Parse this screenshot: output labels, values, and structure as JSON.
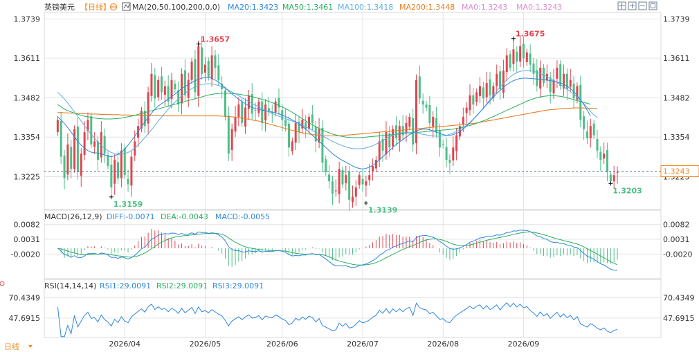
{
  "header": {
    "instrument": "英镑美元",
    "period_tag": "【日线】",
    "ma_label": "MA(20,50,100,200,0,0)",
    "ma_values": [
      {
        "text": "MA20:1.3423",
        "color": "#2e86de"
      },
      {
        "text": "MA50:1.3461",
        "color": "#27ae60"
      },
      {
        "text": "MA100:1.3418",
        "color": "#5dade2"
      },
      {
        "text": "MA200:1.3448",
        "color": "#e67e22"
      },
      {
        "text": "MA0:1.3243",
        "color": "#d98cd0"
      },
      {
        "text": "MA0:1.3243",
        "color": "#d98cd0"
      }
    ]
  },
  "controls": [
    {
      "name": "crosshair-icon"
    },
    {
      "name": "zoom-in-icon"
    },
    {
      "name": "zoom-out-icon"
    },
    {
      "name": "fullscreen-icon"
    }
  ],
  "macd": {
    "label": "MACD(26,12,9)",
    "values": [
      {
        "text": "DIFF:-0.0071",
        "color": "#2e86de"
      },
      {
        "text": "DEA:-0.0043",
        "color": "#27ae60"
      },
      {
        "text": "MACD:-0.0055",
        "color": "#2e86de"
      }
    ]
  },
  "rsi": {
    "label": "RSI(14,14,14)",
    "values": [
      {
        "text": "RSI1:29.0091",
        "color": "#2e86de"
      },
      {
        "text": "RSI2:29.0091",
        "color": "#27ae60"
      },
      {
        "text": "RSI3:29.0091",
        "color": "#2e86de"
      }
    ]
  },
  "period_button": "日线",
  "colors": {
    "up": "#e0454f",
    "down": "#4dbf87",
    "ma20": "#2e86de",
    "ma50": "#27ae60",
    "ma100": "#5dade2",
    "ma200": "#e67e22",
    "dea": "#27ae60",
    "diff": "#2e86de",
    "rsi": "#2e86de",
    "price_tag": "#f08a24",
    "grid": "#e3e3e3"
  },
  "chart_data": {
    "type": "candlestick",
    "price_axis": {
      "ticks": [
        "1.3739",
        "1.3611",
        "1.3482",
        "1.3354",
        "1.3225"
      ],
      "tick_values": [
        1.3739,
        1.3611,
        1.3482,
        1.3354,
        1.3225
      ],
      "range": [
        1.3118,
        1.376
      ],
      "last_price": "1.3243",
      "last_value": 1.3243
    },
    "annotations": [
      {
        "text": "1.3657",
        "index": 42,
        "value": 1.3657,
        "type": "high"
      },
      {
        "text": "1.3675",
        "index": 136,
        "value": 1.3675,
        "type": "high"
      },
      {
        "text": "1.3159",
        "index": 16,
        "value": 1.3159,
        "type": "low"
      },
      {
        "text": "1.3139",
        "index": 92,
        "value": 1.3139,
        "type": "low"
      },
      {
        "text": "1.3203",
        "index": 165,
        "value": 1.3203,
        "type": "low"
      }
    ],
    "x_ticks": [
      {
        "label": "2026/04",
        "index": 20
      },
      {
        "label": "2026/05",
        "index": 44
      },
      {
        "label": "2026/06",
        "index": 67
      },
      {
        "label": "2026/07",
        "index": 91
      },
      {
        "label": "2026/08",
        "index": 115
      },
      {
        "label": "2026/09",
        "index": 139
      }
    ],
    "closes": [
      1.341,
      1.329,
      1.322,
      1.333,
      1.325,
      1.338,
      1.324,
      1.33,
      1.337,
      1.341,
      1.333,
      1.334,
      1.328,
      1.337,
      1.33,
      1.326,
      1.319,
      1.328,
      1.322,
      1.331,
      1.323,
      1.32,
      1.329,
      1.334,
      1.339,
      1.344,
      1.339,
      1.35,
      1.356,
      1.348,
      1.354,
      1.35,
      1.352,
      1.347,
      1.354,
      1.351,
      1.346,
      1.356,
      1.349,
      1.354,
      1.36,
      1.35,
      1.365,
      1.356,
      1.359,
      1.355,
      1.362,
      1.358,
      1.354,
      1.351,
      1.342,
      1.33,
      1.338,
      1.342,
      1.346,
      1.34,
      1.345,
      1.349,
      1.343,
      1.344,
      1.347,
      1.34,
      1.346,
      1.344,
      1.343,
      1.347,
      1.345,
      1.341,
      1.339,
      1.332,
      1.334,
      1.34,
      1.337,
      1.341,
      1.338,
      1.342,
      1.34,
      1.334,
      1.338,
      1.327,
      1.324,
      1.321,
      1.317,
      1.318,
      1.325,
      1.32,
      1.323,
      1.315,
      1.316,
      1.319,
      1.323,
      1.32,
      1.321,
      1.323,
      1.326,
      1.328,
      1.334,
      1.331,
      1.337,
      1.332,
      1.338,
      1.335,
      1.339,
      1.336,
      1.34,
      1.342,
      1.333,
      1.354,
      1.348,
      1.346,
      1.345,
      1.34,
      1.342,
      1.337,
      1.332,
      1.333,
      1.328,
      1.327,
      1.332,
      1.336,
      1.339,
      1.342,
      1.345,
      1.349,
      1.346,
      1.35,
      1.352,
      1.348,
      1.353,
      1.349,
      1.352,
      1.356,
      1.351,
      1.357,
      1.362,
      1.358,
      1.364,
      1.36,
      1.365,
      1.361,
      1.363,
      1.359,
      1.356,
      1.352,
      1.358,
      1.353,
      1.356,
      1.35,
      1.354,
      1.358,
      1.352,
      1.356,
      1.351,
      1.354,
      1.348,
      1.352,
      1.341,
      1.338,
      1.335,
      1.339,
      1.336,
      1.331,
      1.328,
      1.33,
      1.324,
      1.321,
      1.323,
      1.324
    ],
    "ma20": [
      1.342,
      1.341,
      1.3398,
      1.3385,
      1.337,
      1.3355,
      1.334,
      1.3328,
      1.3318,
      1.331,
      1.3305,
      1.3303,
      1.3302,
      1.33,
      1.3296,
      1.3292,
      1.329,
      1.3293,
      1.3298,
      1.3305,
      1.3315,
      1.3328,
      1.3342,
      1.3357,
      1.3372,
      1.3388,
      1.3403,
      1.3418,
      1.3432,
      1.3445,
      1.3455,
      1.3463,
      1.347,
      1.3478,
      1.3486,
      1.3494,
      1.3503,
      1.3512,
      1.3519,
      1.3525,
      1.3532,
      1.3538,
      1.3542,
      1.3546,
      1.3548,
      1.3548,
      1.3546,
      1.354,
      1.3533,
      1.3524,
      1.3514,
      1.3504,
      1.3495,
      1.3486,
      1.3477,
      1.347,
      1.3463,
      1.3456,
      1.345,
      1.3447,
      1.3444,
      1.3442,
      1.344,
      1.3438,
      1.3436,
      1.3433,
      1.343,
      1.3426,
      1.3421,
      1.3416,
      1.341,
      1.3404,
      1.3397,
      1.3389,
      1.338,
      1.337,
      1.336,
      1.335,
      1.334,
      1.333,
      1.332,
      1.331,
      1.33,
      1.3292,
      1.3284,
      1.3278,
      1.3272,
      1.3266,
      1.326,
      1.3255,
      1.3252,
      1.325,
      1.3252,
      1.3256,
      1.3262,
      1.327,
      1.328,
      1.329,
      1.33,
      1.331,
      1.332,
      1.333,
      1.3338,
      1.3346,
      1.3354,
      1.3362,
      1.3368,
      1.3374,
      1.3378,
      1.338,
      1.338,
      1.3378,
      1.3374,
      1.337,
      1.3366,
      1.3362,
      1.336,
      1.336,
      1.3362,
      1.3366,
      1.3372,
      1.338,
      1.339,
      1.34,
      1.3412,
      1.3424,
      1.3436,
      1.3448,
      1.346,
      1.3472,
      1.3484,
      1.3496,
      1.3506,
      1.3516,
      1.3525,
      1.3532,
      1.3538,
      1.3542,
      1.3545,
      1.3546,
      1.3546,
      1.3545,
      1.3544,
      1.3543,
      1.3542,
      1.3541,
      1.354,
      1.3538,
      1.3536,
      1.3533,
      1.353,
      1.3526,
      1.352,
      1.3512,
      1.3502,
      1.349,
      1.3476,
      1.346,
      1.3442,
      1.3423
    ],
    "ma50": [
      1.346,
      1.3452,
      1.3445,
      1.344,
      1.3436,
      1.3432,
      1.3428,
      1.3425,
      1.3422,
      1.342,
      1.3418,
      1.3416,
      1.3415,
      1.3414,
      1.3413,
      1.3413,
      1.3413,
      1.3414,
      1.3415,
      1.3416,
      1.3418,
      1.342,
      1.3422,
      1.3425,
      1.3428,
      1.3431,
      1.3434,
      1.3437,
      1.344,
      1.3443,
      1.3446,
      1.3449,
      1.3452,
      1.3455,
      1.3458,
      1.3461,
      1.3464,
      1.3467,
      1.347,
      1.3473,
      1.3476,
      1.3479,
      1.3482,
      1.3485,
      1.3488,
      1.3491,
      1.3493,
      1.3495,
      1.3496,
      1.3497,
      1.3497,
      1.3497,
      1.3496,
      1.3495,
      1.3494,
      1.3492,
      1.349,
      1.3488,
      1.3486,
      1.3483,
      1.348,
      1.3477,
      1.3474,
      1.347,
      1.3466,
      1.3462,
      1.3457,
      1.3452,
      1.3447,
      1.3441,
      1.3435,
      1.3428,
      1.3421,
      1.3414,
      1.3407,
      1.34,
      1.3394,
      1.3388,
      1.3382,
      1.3377,
      1.3372,
      1.3368,
      1.3364,
      1.3361,
      1.3358,
      1.3356,
      1.3354,
      1.3353,
      1.3352,
      1.3352,
      1.3352,
      1.3353,
      1.3354,
      1.3355,
      1.3356,
      1.3357,
      1.3358,
      1.3359,
      1.336,
      1.3361,
      1.3362,
      1.3363,
      1.3364,
      1.3365,
      1.3366,
      1.3367,
      1.3368,
      1.3369,
      1.337,
      1.3371,
      1.3372,
      1.3373,
      1.3374,
      1.3375,
      1.3376,
      1.3377,
      1.3378,
      1.3379,
      1.338,
      1.3382,
      1.3384,
      1.3386,
      1.3389,
      1.3392,
      1.3395,
      1.3399,
      1.3403,
      1.3407,
      1.3411,
      1.3416,
      1.3421,
      1.3426,
      1.3431,
      1.3436,
      1.3441,
      1.3446,
      1.3451,
      1.3456,
      1.3461,
      1.3466,
      1.3471,
      1.3475,
      1.3479,
      1.3482,
      1.3485,
      1.3487,
      1.3488,
      1.3489,
      1.3489,
      1.3488,
      1.3487,
      1.3485,
      1.3482,
      1.3479,
      1.3476,
      1.3473,
      1.347,
      1.3467,
      1.3464,
      1.3461
    ],
    "ma100": [
      1.35,
      1.349,
      1.3478,
      1.3465,
      1.3451,
      1.3436,
      1.3421,
      1.3406,
      1.3391,
      1.3377,
      1.3363,
      1.335,
      1.3338,
      1.3327,
      1.3318,
      1.331,
      1.3304,
      1.33,
      1.3298,
      1.3298,
      1.33,
      1.3304,
      1.331,
      1.3318,
      1.3328,
      1.334,
      1.3352,
      1.3365,
      1.3378,
      1.3392,
      1.3406,
      1.3419,
      1.3432,
      1.3445,
      1.3457,
      1.3468,
      1.3478,
      1.3488,
      1.3497,
      1.3505,
      1.3512,
      1.3518,
      1.3522,
      1.3525,
      1.3527,
      1.3528,
      1.3527,
      1.3525,
      1.3522,
      1.3518,
      1.3513,
      1.3507,
      1.3501,
      1.3495,
      1.3489,
      1.3482,
      1.3476,
      1.347,
      1.3464,
      1.3458,
      1.3452,
      1.3446,
      1.3441,
      1.3436,
      1.3431,
      1.3426,
      1.3422,
      1.3418,
      1.3414,
      1.341,
      1.3406,
      1.3402,
      1.3398,
      1.3393,
      1.3388,
      1.3382,
      1.3376,
      1.337,
      1.3364,
      1.3358,
      1.3352,
      1.3346,
      1.334,
      1.3335,
      1.333,
      1.3326,
      1.3322,
      1.3319,
      1.3317,
      1.3316,
      1.3316,
      1.3317,
      1.3319,
      1.3322,
      1.3326,
      1.3331,
      1.3337,
      1.3343,
      1.3349,
      1.3355,
      1.336,
      1.3364,
      1.3367,
      1.3369,
      1.337,
      1.337,
      1.3369,
      1.3367,
      1.3365,
      1.3363,
      1.3361,
      1.3359,
      1.3358,
      1.3357,
      1.3357,
      1.3358,
      1.336,
      1.3363,
      1.3367,
      1.3372,
      1.3378,
      1.3385,
      1.3393,
      1.3402,
      1.3412,
      1.3423,
      1.3435,
      1.3448,
      1.3462,
      1.3476,
      1.349,
      1.3504,
      1.3517,
      1.3529,
      1.354,
      1.355,
      1.3558,
      1.3564,
      1.3568,
      1.357,
      1.3571,
      1.357,
      1.3568,
      1.3565,
      1.3561,
      1.3556,
      1.3551,
      1.3545,
      1.3539,
      1.3532,
      1.3525,
      1.3518,
      1.351,
      1.3502,
      1.3494,
      1.3484,
      1.3474,
      1.3463,
      1.3451,
      1.3438,
      1.3426,
      1.3418
    ],
    "ma200": [
      1.3434,
      1.3434,
      1.3433,
      1.3433,
      1.3432,
      1.3432,
      1.3431,
      1.3431,
      1.343,
      1.343,
      1.3429,
      1.3429,
      1.3429,
      1.3428,
      1.3428,
      1.3428,
      1.3427,
      1.3427,
      1.3427,
      1.3426,
      1.3426,
      1.3426,
      1.3425,
      1.3425,
      1.3425,
      1.3425,
      1.3424,
      1.3424,
      1.3424,
      1.3424,
      1.3424,
      1.3423,
      1.3423,
      1.3423,
      1.3423,
      1.3423,
      1.3423,
      1.3423,
      1.3423,
      1.3423,
      1.3423,
      1.3423,
      1.3423,
      1.3423,
      1.3423,
      1.3423,
      1.3423,
      1.3423,
      1.3423,
      1.3422,
      1.3422,
      1.3421,
      1.342,
      1.3419,
      1.3418,
      1.3416,
      1.3414,
      1.3412,
      1.341,
      1.3408,
      1.3406,
      1.3403,
      1.34,
      1.3397,
      1.3394,
      1.3391,
      1.3388,
      1.3385,
      1.3382,
      1.3379,
      1.3376,
      1.3373,
      1.337,
      1.3368,
      1.3366,
      1.3364,
      1.3362,
      1.3361,
      1.336,
      1.3359,
      1.3358,
      1.3358,
      1.3358,
      1.3358,
      1.3358,
      1.3359,
      1.336,
      1.3361,
      1.3362,
      1.3363,
      1.3364,
      1.3365,
      1.3366,
      1.3367,
      1.3368,
      1.3369,
      1.337,
      1.3371,
      1.3372,
      1.3373,
      1.3374,
      1.3375,
      1.3376,
      1.3377,
      1.3378,
      1.3379,
      1.338,
      1.3381,
      1.3382,
      1.3383,
      1.3384,
      1.3385,
      1.3386,
      1.3387,
      1.3388,
      1.3389,
      1.339,
      1.3391,
      1.3392,
      1.3393,
      1.3394,
      1.3395,
      1.3396,
      1.3397,
      1.3398,
      1.34,
      1.3402,
      1.3404,
      1.3406,
      1.3408,
      1.341,
      1.3412,
      1.3414,
      1.3416,
      1.3418,
      1.342,
      1.3422,
      1.3424,
      1.3426,
      1.3428,
      1.343,
      1.3432,
      1.3434,
      1.3436,
      1.3438,
      1.344,
      1.3442,
      1.3443,
      1.3444,
      1.3445,
      1.3446,
      1.3447,
      1.3448,
      1.3448,
      1.3449,
      1.3449,
      1.3449,
      1.3449,
      1.3448,
      1.3448,
      1.3448,
      1.3448
    ],
    "macd_axis": {
      "ticks": [
        "0.0082",
        "0.0031",
        "-0.0020"
      ],
      "tick_values": [
        0.0082,
        0.0031,
        -0.002
      ],
      "range": [
        -0.0105,
        0.0098
      ]
    },
    "rsi_axis": {
      "ticks": [
        "70.4349",
        "47.6915"
      ],
      "tick_values": [
        70.4349,
        47.6915
      ],
      "range": [
        26.0,
        80.0
      ]
    },
    "x_range": [
      0,
      171
    ],
    "plot_start_index": -4,
    "plot_end_index": 180
  }
}
